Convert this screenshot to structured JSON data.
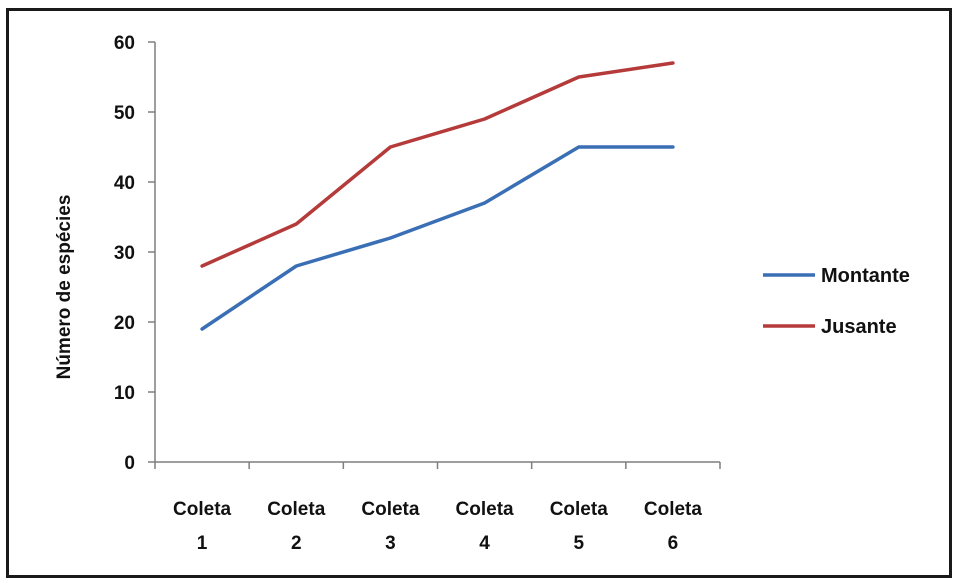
{
  "chart_data": {
    "type": "line",
    "title": "",
    "xlabel": "",
    "ylabel": "Número de espécies",
    "categories": [
      [
        "Coleta",
        "1"
      ],
      [
        "Coleta",
        "2"
      ],
      [
        "Coleta",
        "3"
      ],
      [
        "Coleta",
        "4"
      ],
      [
        "Coleta",
        "5"
      ],
      [
        "Coleta",
        "6"
      ]
    ],
    "ylim": [
      0,
      60
    ],
    "yticks": [
      0,
      10,
      20,
      30,
      40,
      50,
      60
    ],
    "grid": false,
    "legend_position": "right",
    "series": [
      {
        "name": "Montante",
        "color": "#3a6fb5",
        "values": [
          19,
          28,
          32,
          37,
          45,
          45
        ]
      },
      {
        "name": "Jusante",
        "color": "#b53a3a",
        "values": [
          28,
          34,
          45,
          49,
          55,
          57
        ]
      }
    ]
  }
}
